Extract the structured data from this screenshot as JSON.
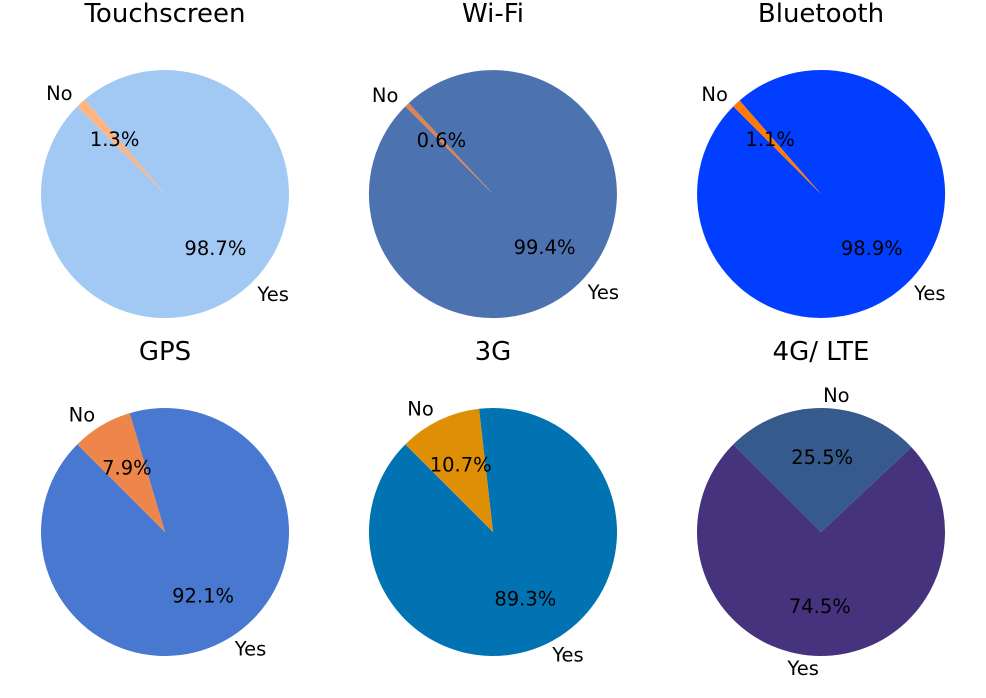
{
  "chart_data": [
    {
      "type": "pie",
      "title": "Touchscreen",
      "categories": [
        "Yes",
        "No"
      ],
      "values": [
        98.7,
        1.3
      ],
      "value_labels": [
        "98.7%",
        "1.3%"
      ],
      "colors": [
        "#a1c9f4",
        "#ffb482"
      ]
    },
    {
      "type": "pie",
      "title": "Wi-Fi",
      "categories": [
        "Yes",
        "No"
      ],
      "values": [
        99.4,
        0.6
      ],
      "value_labels": [
        "99.4%",
        "0.6%"
      ],
      "colors": [
        "#4c72b0",
        "#dd8452"
      ]
    },
    {
      "type": "pie",
      "title": "Bluetooth",
      "categories": [
        "Yes",
        "No"
      ],
      "values": [
        98.9,
        1.1
      ],
      "value_labels": [
        "98.9%",
        "1.1%"
      ],
      "colors": [
        "#023eff",
        "#ff7c00"
      ]
    },
    {
      "type": "pie",
      "title": "GPS",
      "categories": [
        "Yes",
        "No"
      ],
      "values": [
        92.1,
        7.9
      ],
      "value_labels": [
        "92.1%",
        "7.9%"
      ],
      "colors": [
        "#4878d0",
        "#ee854a"
      ]
    },
    {
      "type": "pie",
      "title": "3G",
      "categories": [
        "Yes",
        "No"
      ],
      "values": [
        89.3,
        10.7
      ],
      "value_labels": [
        "89.3%",
        "10.7%"
      ],
      "colors": [
        "#0173b2",
        "#de8f05"
      ]
    },
    {
      "type": "pie",
      "title": "4G/ LTE",
      "categories": [
        "Yes",
        "No"
      ],
      "values": [
        74.5,
        25.5
      ],
      "value_labels": [
        "74.5%",
        "25.5%"
      ],
      "colors": [
        "#45337d",
        "#365a8c"
      ]
    }
  ]
}
